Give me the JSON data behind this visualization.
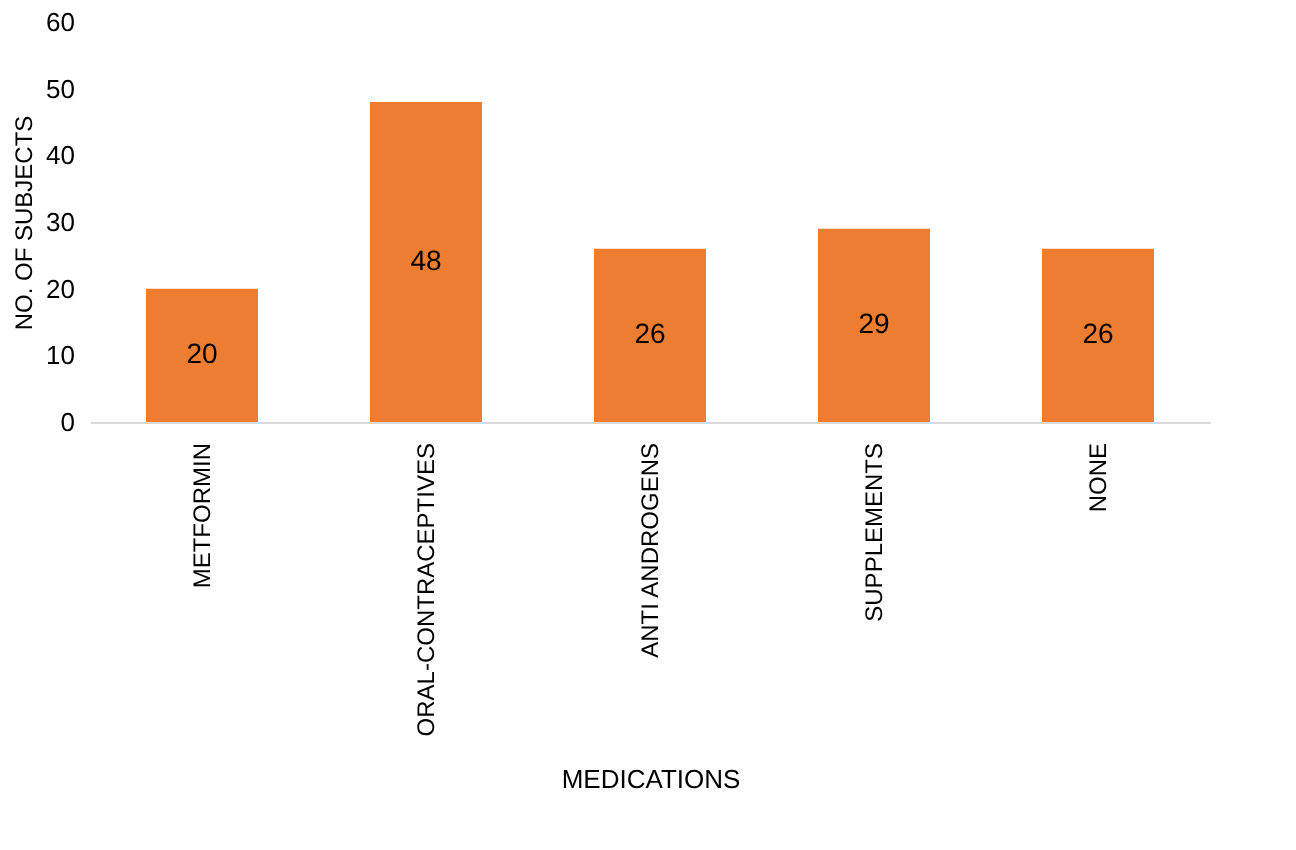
{
  "chart_data": {
    "type": "bar",
    "xlabel": "MEDICATIONS",
    "ylabel": "NO. OF SUBJECTS",
    "categories": [
      "METFORMIN",
      "ORAL-CONTRACEPTIVES",
      "ANTI ANDROGENS",
      "SUPPLEMENTS",
      "NONE"
    ],
    "values": [
      20,
      48,
      26,
      29,
      26
    ],
    "color": "#ed7d31",
    "ylim": [
      0,
      60
    ],
    "yticks": [
      0,
      10,
      20,
      30,
      40,
      50,
      60
    ],
    "grid": false,
    "data_labels": true
  }
}
